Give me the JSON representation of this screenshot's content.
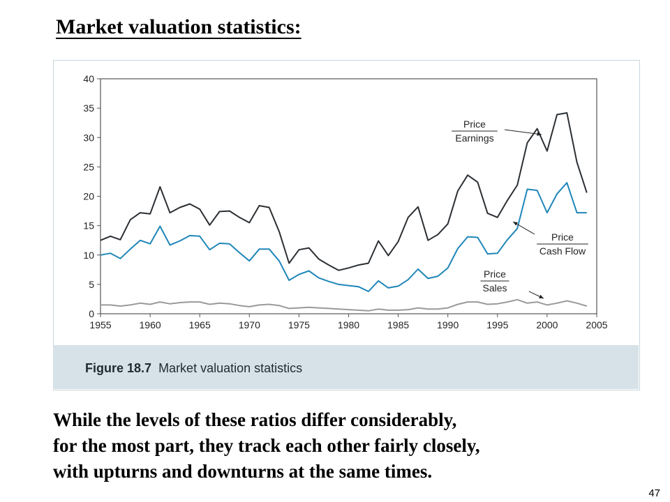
{
  "slide": {
    "title": "Market valuation statistics:",
    "body_lines": [
      "While the levels of these ratios differ considerably,",
      "for the most part, they track each other fairly closely,",
      "with upturns and downturns at the same times."
    ],
    "page_number": "47"
  },
  "figure": {
    "caption_label": "Figure 18.7",
    "caption_text": "Market valuation statistics"
  },
  "chart_data": {
    "type": "line",
    "title": "",
    "xlabel": "",
    "ylabel": "",
    "xlim": [
      1955,
      2005
    ],
    "ylim": [
      0,
      40
    ],
    "x_ticks": [
      1955,
      1960,
      1965,
      1970,
      1975,
      1980,
      1985,
      1990,
      1995,
      2000,
      2005
    ],
    "y_ticks": [
      0,
      5,
      10,
      15,
      20,
      25,
      30,
      35,
      40
    ],
    "grid": false,
    "legend": "inline annotations",
    "x": [
      1955,
      1956,
      1957,
      1958,
      1959,
      1960,
      1961,
      1962,
      1963,
      1964,
      1965,
      1966,
      1967,
      1968,
      1969,
      1970,
      1971,
      1972,
      1973,
      1974,
      1975,
      1976,
      1977,
      1978,
      1979,
      1980,
      1981,
      1982,
      1983,
      1984,
      1985,
      1986,
      1987,
      1988,
      1989,
      1990,
      1991,
      1992,
      1993,
      1994,
      1995,
      1996,
      1997,
      1998,
      1999,
      2000,
      2001,
      2002,
      2003,
      2004
    ],
    "series": [
      {
        "name": "Price/Earnings",
        "label_lines": [
          "Price",
          "Earnings"
        ],
        "color": "#2b2f33",
        "values": [
          12.5,
          13.2,
          12.6,
          16.0,
          17.2,
          17.0,
          21.6,
          17.2,
          18.1,
          18.7,
          17.8,
          15.1,
          17.4,
          17.5,
          16.4,
          15.5,
          18.4,
          18.1,
          14.0,
          8.6,
          10.9,
          11.2,
          9.3,
          8.3,
          7.4,
          7.8,
          8.3,
          8.6,
          12.4,
          9.9,
          12.3,
          16.4,
          18.2,
          12.5,
          13.5,
          15.3,
          20.9,
          23.6,
          22.4,
          17.1,
          16.4,
          19.3,
          21.9,
          29.1,
          31.5,
          27.7,
          33.9,
          34.2,
          25.8,
          20.6
        ]
      },
      {
        "name": "Price/Cash Flow",
        "label_lines": [
          "Price",
          "Cash Flow"
        ],
        "color": "#1f86b8",
        "values": [
          10.0,
          10.3,
          9.4,
          11.0,
          12.5,
          11.9,
          14.9,
          11.7,
          12.4,
          13.3,
          13.2,
          10.9,
          12.0,
          11.9,
          10.4,
          9.0,
          11.0,
          11.0,
          9.0,
          5.7,
          6.7,
          7.3,
          6.1,
          5.5,
          5.0,
          4.8,
          4.6,
          3.8,
          5.6,
          4.4,
          4.7,
          5.8,
          7.6,
          6.0,
          6.4,
          7.8,
          11.1,
          13.1,
          13.0,
          10.2,
          10.3,
          12.6,
          14.5,
          21.2,
          21.0,
          17.2,
          20.4,
          22.3,
          17.2,
          17.2
        ]
      },
      {
        "name": "Price/Sales",
        "label_lines": [
          "Price",
          "Sales"
        ],
        "color": "#9a9a9a",
        "values": [
          1.5,
          1.5,
          1.3,
          1.5,
          1.8,
          1.6,
          2.0,
          1.7,
          1.9,
          2.0,
          2.0,
          1.6,
          1.8,
          1.7,
          1.4,
          1.2,
          1.5,
          1.6,
          1.4,
          0.9,
          1.0,
          1.1,
          1.0,
          0.9,
          0.8,
          0.7,
          0.6,
          0.5,
          0.8,
          0.6,
          0.6,
          0.7,
          1.0,
          0.8,
          0.8,
          1.0,
          1.6,
          2.0,
          2.0,
          1.6,
          1.7,
          2.0,
          2.4,
          1.8,
          2.0,
          1.5,
          1.8,
          2.2,
          1.8,
          1.3
        ]
      }
    ]
  }
}
